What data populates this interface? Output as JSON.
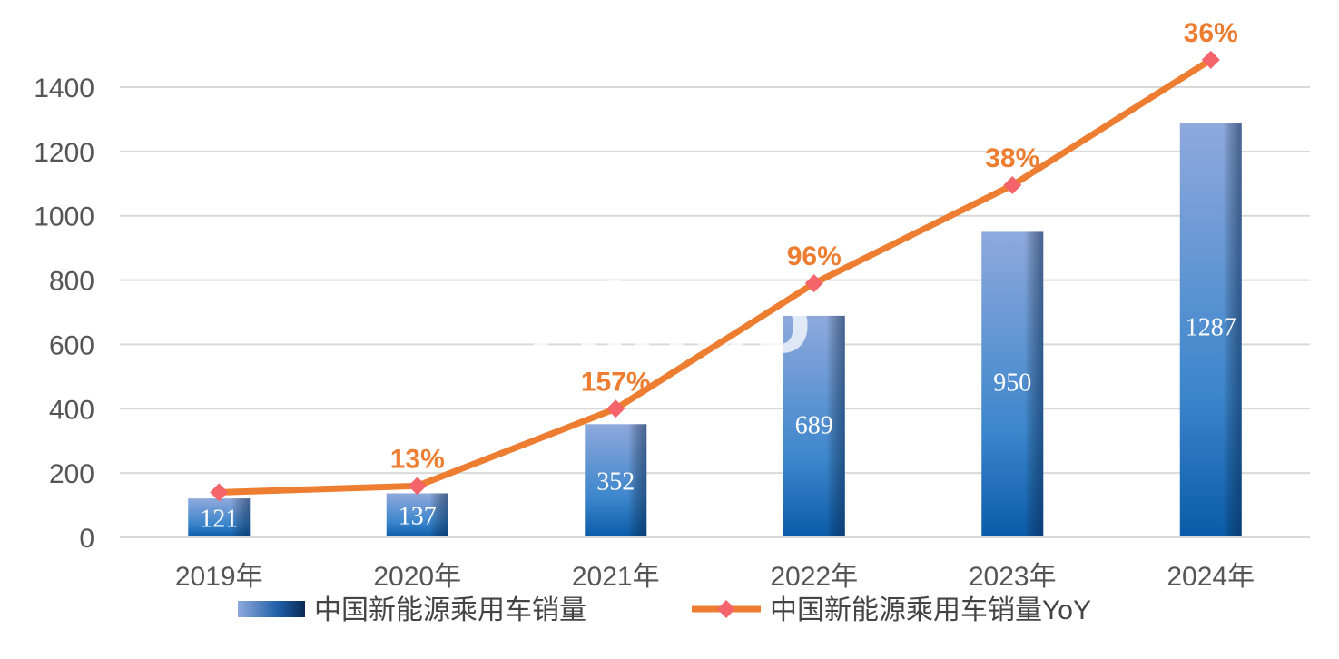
{
  "chart_data": {
    "type": "bar",
    "categories": [
      "2019年",
      "2020年",
      "2021年",
      "2022年",
      "2023年",
      "2024年"
    ],
    "series": [
      {
        "name": "中国新能源乘用车销量",
        "type": "bar",
        "values": [
          121,
          137,
          352,
          689,
          950,
          1287
        ],
        "data_labels": [
          "121",
          "137",
          "352",
          "689",
          "950",
          "1287"
        ]
      },
      {
        "name": "中国新能源乘用车销量YoY",
        "type": "line",
        "values": [
          140,
          160,
          400,
          790,
          1095,
          1485
        ],
        "data_labels": [
          "",
          "13%",
          "157%",
          "96%",
          "38%",
          "36%"
        ]
      }
    ],
    "yticks": [
      "0",
      "200",
      "400",
      "600",
      "800",
      "1000",
      "1200",
      "1400"
    ],
    "ylim": [
      0,
      1400
    ],
    "grid": true,
    "legend_position": "bottom",
    "colors": {
      "bar_top": "#8FA9DC",
      "bar_bottom": "#1F6FB8",
      "bar_dark": "#0B3E73",
      "line": "#ED7D31",
      "marker": "#F4646A",
      "line_label": "#ED7D31"
    }
  },
  "watermark": "Ainuo"
}
